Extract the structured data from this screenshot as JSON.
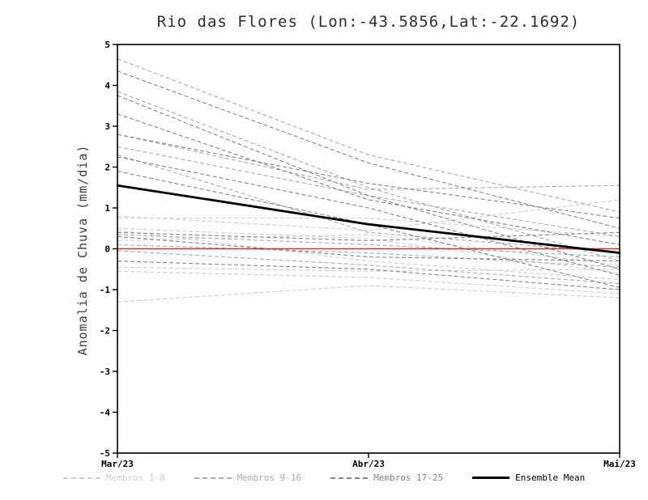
{
  "chart_data": {
    "type": "line",
    "title": "Rio das Flores (Lon:-43.5856,Lat:-22.1692)",
    "ylabel": "Anomalia de Chuva (mm/dia)",
    "x_labels": [
      "Mar/23",
      "Abr/23",
      "Mai/23"
    ],
    "ylim": [
      -5,
      5
    ],
    "y_ticks": [
      -5,
      -4,
      -3,
      -2,
      -1,
      0,
      1,
      2,
      3,
      4,
      5
    ],
    "grid": "off",
    "legend_position": "bottom",
    "zero_line": {
      "value": 0,
      "color": "#ff2015"
    },
    "series_groups": [
      {
        "name": "Membros 1-8",
        "color": "#cfcfcf",
        "style": "dashed",
        "members": [
          [
            0.8,
            0.45,
            1.2
          ],
          [
            0.75,
            0.75,
            0.3
          ],
          [
            0.5,
            0.25,
            -0.6
          ],
          [
            0.45,
            -0.3,
            -0.75
          ],
          [
            0.2,
            0.35,
            -0.4
          ],
          [
            -0.45,
            -0.55,
            -0.5
          ],
          [
            -0.55,
            -0.7,
            -1.1
          ],
          [
            -1.3,
            -0.9,
            -1.2
          ]
        ]
      },
      {
        "name": "Membros 9-16",
        "color": "#ababab",
        "style": "dashed",
        "members": [
          [
            4.65,
            2.3,
            0.9
          ],
          [
            3.85,
            1.5,
            -0.3
          ],
          [
            2.8,
            1.45,
            1.55
          ],
          [
            2.5,
            1.3,
            0.3
          ],
          [
            2.3,
            0.4,
            -0.1
          ],
          [
            0.35,
            0.1,
            -0.2
          ],
          [
            0.1,
            -0.1,
            -0.45
          ],
          [
            -0.05,
            -0.4,
            -0.85
          ]
        ]
      },
      {
        "name": "Membros 17-25",
        "color": "#858585",
        "style": "dashed",
        "members": [
          [
            4.35,
            2.1,
            0.5
          ],
          [
            3.75,
            1.3,
            -0.5
          ],
          [
            3.3,
            1.2,
            0.1
          ],
          [
            2.8,
            1.6,
            0.75
          ],
          [
            2.25,
            1.0,
            -0.65
          ],
          [
            1.9,
            0.6,
            -0.95
          ],
          [
            0.4,
            0.2,
            0.4
          ],
          [
            0.3,
            -0.2,
            -0.3
          ],
          [
            -0.3,
            -0.5,
            -1.0
          ]
        ]
      }
    ],
    "ensemble_mean": {
      "name": "Ensemble Mean",
      "color": "#000000",
      "values": [
        1.55,
        0.6,
        -0.1
      ]
    }
  }
}
